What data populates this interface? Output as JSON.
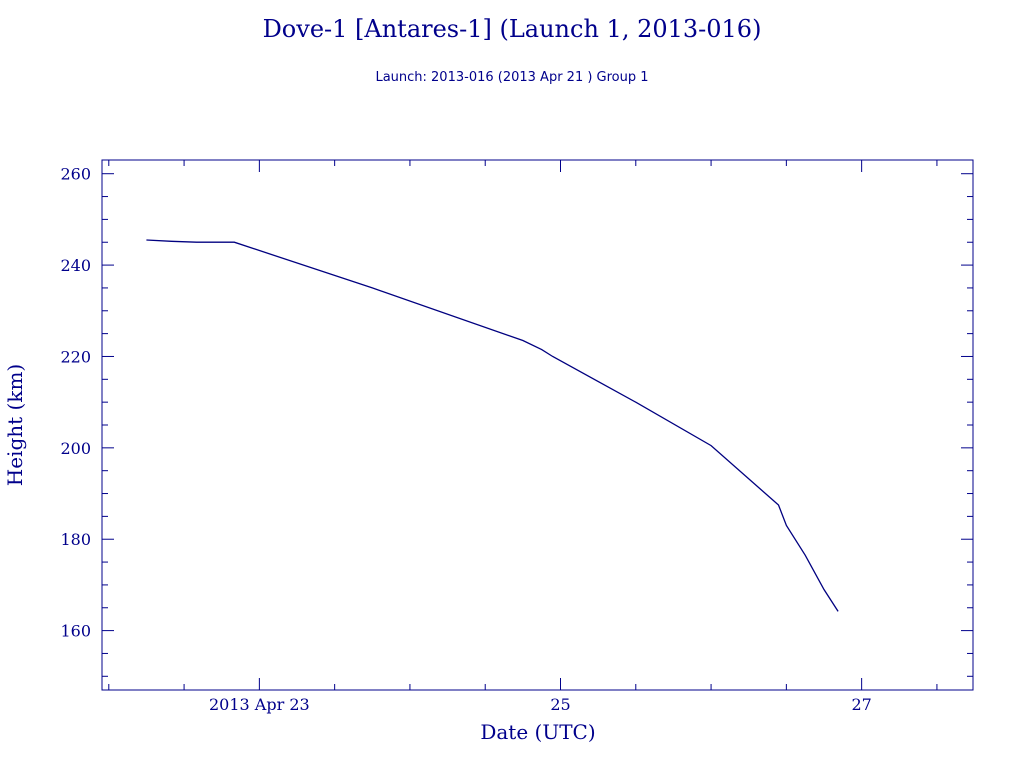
{
  "chart_data": {
    "type": "line",
    "title": "Dove-1 [Antares-1] (Launch 1, 2013-016)",
    "subtitle": "Launch: 2013-016  (2013 Apr 21 )  Group 1",
    "xlabel": "Date (UTC)",
    "ylabel": "Height (km)",
    "grid": false,
    "xlim": [
      "2013-04-21 22:55",
      "2013-04-27 17:45"
    ],
    "ylim": [
      147,
      263
    ],
    "x_ticks": [
      {
        "value": "2013-04-23",
        "label": "2013 Apr 23"
      },
      {
        "value": "2013-04-25",
        "label": "25"
      },
      {
        "value": "2013-04-27",
        "label": "27"
      }
    ],
    "y_ticks": [
      160,
      180,
      200,
      220,
      240,
      260
    ],
    "colors": {
      "axis": "#00008b",
      "line": "#000080",
      "text": "#00008b"
    },
    "series": [
      {
        "x": [
          "2013-04-22 06:00",
          "2013-04-22 10:00",
          "2013-04-22 14:00",
          "2013-04-22 20:00",
          "2013-04-23 18:00",
          "2013-04-24 18:00",
          "2013-04-24 21:00",
          "2013-04-24 22:45",
          "2013-04-25 12:00",
          "2013-04-26 00:00",
          "2013-04-26 10:45",
          "2013-04-26 12:00",
          "2013-04-26 15:00",
          "2013-04-26 18:00",
          "2013-04-26 20:15"
        ],
        "y": [
          245.5,
          245.2,
          245.0,
          245.0,
          235.0,
          223.5,
          221.5,
          220.0,
          210.0,
          200.5,
          187.5,
          183.0,
          176.5,
          169.0,
          164.2
        ]
      }
    ]
  }
}
